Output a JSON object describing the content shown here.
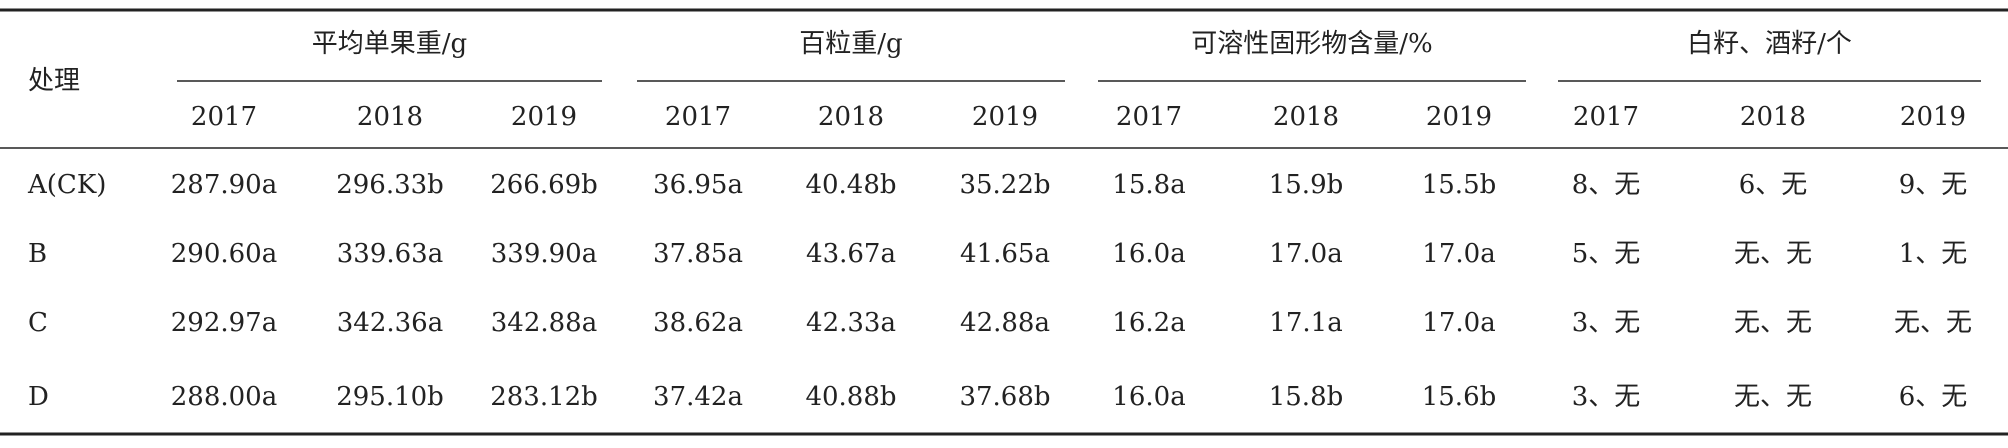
{
  "header": {
    "row_label": "处理",
    "groups": [
      {
        "title": "平均单果重/g",
        "years": [
          "2017",
          "2018",
          "2019"
        ]
      },
      {
        "title": "百粒重/g",
        "years": [
          "2017",
          "2018",
          "2019"
        ]
      },
      {
        "title": "可溶性固形物含量/%",
        "years": [
          "2017",
          "2018",
          "2019"
        ]
      },
      {
        "title": "白籽、酒籽/个",
        "years": [
          "2017",
          "2018",
          "2019"
        ]
      }
    ]
  },
  "table": {
    "rows": [
      [
        "A(CK)",
        "287.90a",
        "296.33b",
        "266.69b",
        "36.95a",
        "40.48b",
        "35.22b",
        "15.8a",
        "15.9b",
        "15.5b",
        "8、无",
        "6、无",
        "9、无"
      ],
      [
        "B",
        "290.60a",
        "339.63a",
        "339.90a",
        "37.85a",
        "43.67a",
        "41.65a",
        "16.0a",
        "17.0a",
        "17.0a",
        "5、无",
        "无、无",
        "1、无"
      ],
      [
        "C",
        "292.97a",
        "342.36a",
        "342.88a",
        "38.62a",
        "42.33a",
        "42.88a",
        "16.2a",
        "17.1a",
        "17.0a",
        "3、无",
        "无、无",
        "无、无"
      ],
      [
        "D",
        "288.00a",
        "295.10b",
        "283.12b",
        "37.42a",
        "40.88b",
        "37.68b",
        "16.0a",
        "15.8b",
        "15.6b",
        "3、无",
        "无、无",
        "6、无"
      ]
    ]
  }
}
